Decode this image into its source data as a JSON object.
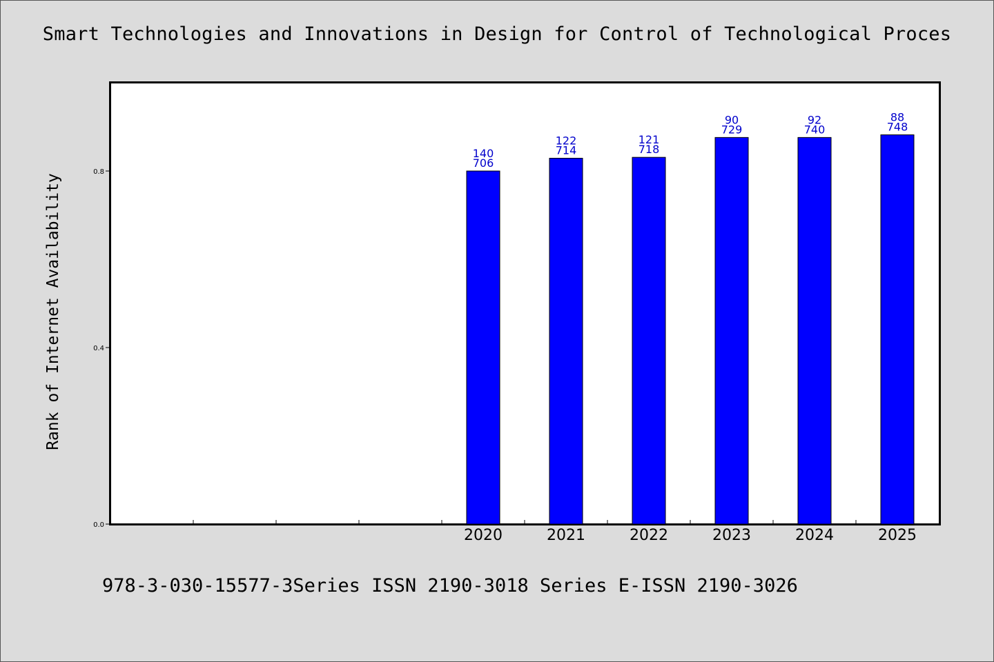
{
  "chart_data": {
    "type": "bar",
    "title": "Smart Technologies and Innovations in Design for Control of Technological Proces",
    "xlabel": "",
    "ylabel": "Rank of Internet Availability",
    "footer": "978-3-030-15577-3Series ISSN 2190-3018 Series E-ISSN 2190-3026",
    "ylim": [
      0,
      1.0
    ],
    "yticks": [
      {
        "value": 0.0,
        "label": "0.0"
      },
      {
        "value": 0.4,
        "label": "0.4"
      },
      {
        "value": 0.8,
        "label": "0.8"
      }
    ],
    "slots": 10,
    "categories": [
      "2020",
      "2021",
      "2022",
      "2023",
      "2024",
      "2025"
    ],
    "first_slot": 4,
    "values": [
      0.8,
      0.829,
      0.831,
      0.876,
      0.876,
      0.882
    ],
    "labels_top": [
      "140",
      "122",
      "121",
      "90",
      "92",
      "88"
    ],
    "labels_bottom": [
      "706",
      "714",
      "718",
      "729",
      "740",
      "748"
    ],
    "bar_color": "#0000ff",
    "label_color": "#0000cc",
    "grid": false,
    "legend": "none"
  }
}
